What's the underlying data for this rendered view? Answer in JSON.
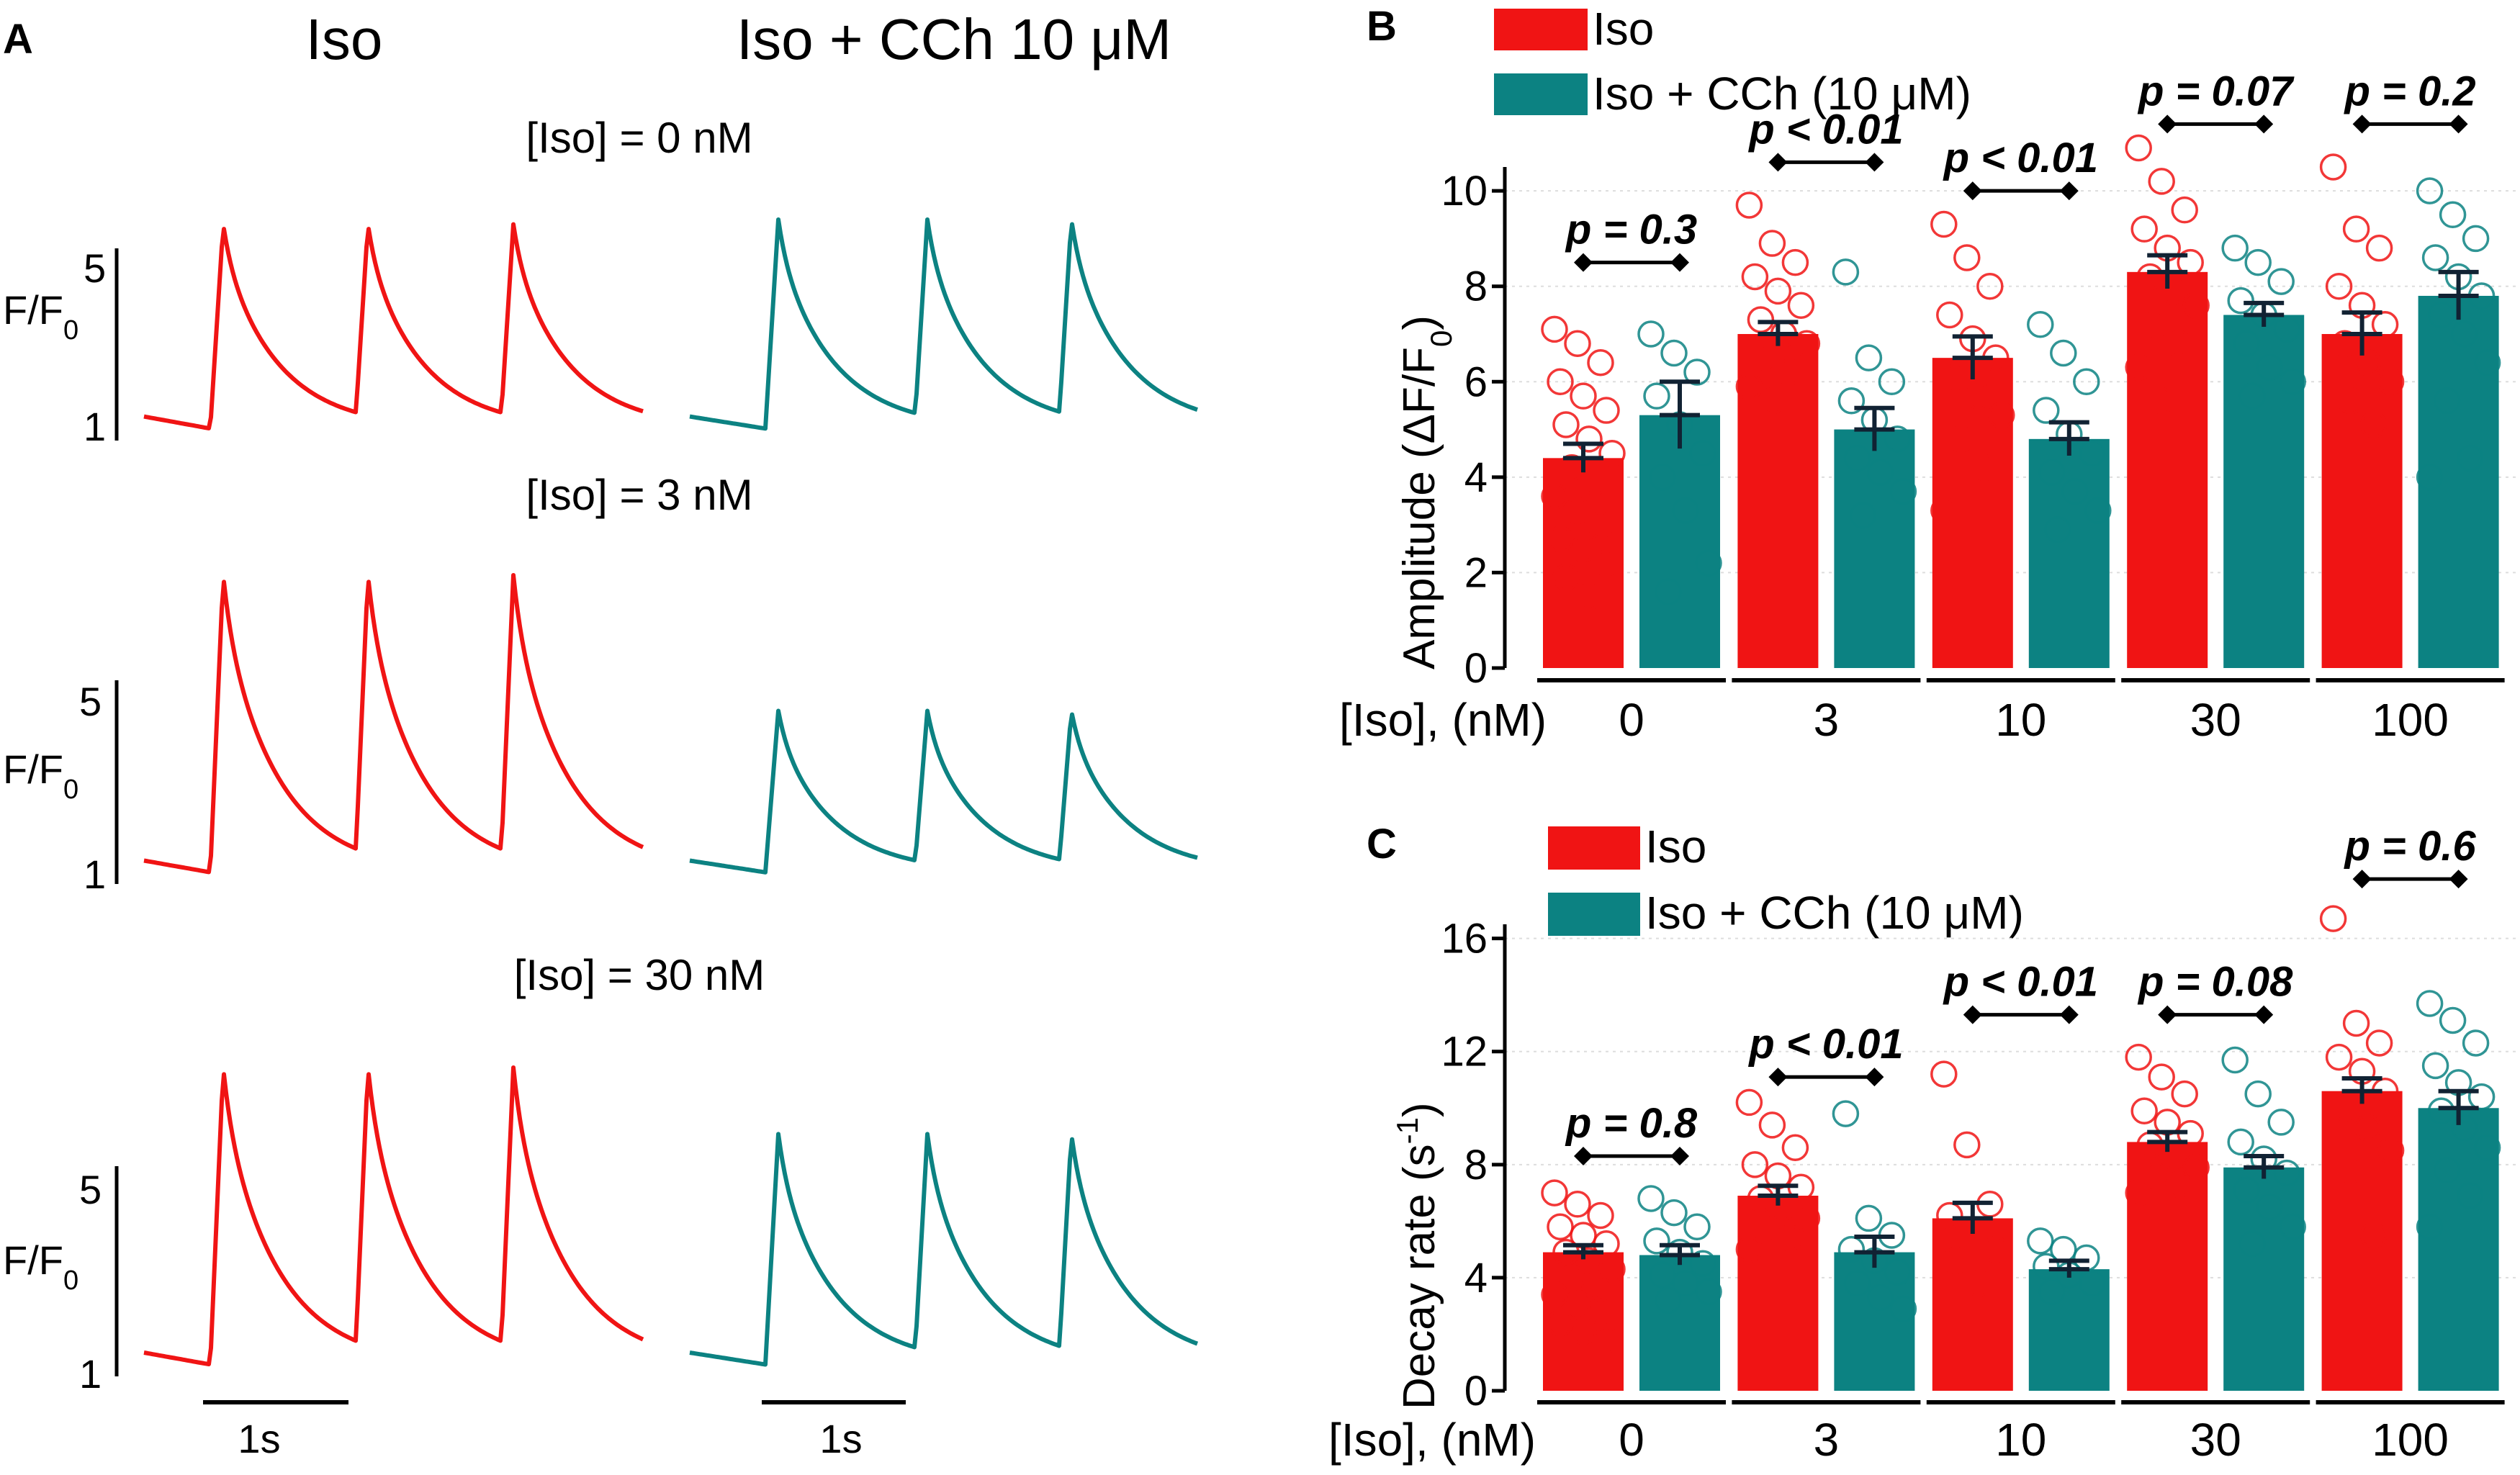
{
  "colors": {
    "iso": "#f01414",
    "cch": "#0c8282",
    "grid": "#dddddd"
  },
  "panel_a": {
    "letter": "A",
    "col_iso": "Iso",
    "col_cch": "Iso + CCh 10 μM",
    "scale_top": "5",
    "scale_bottom": "1",
    "scale_label": "F/F",
    "scale_sub": "0",
    "time_bar_label": "1s",
    "rows": [
      {
        "condition": "[Iso] = 0 nM",
        "iso_peak": 5.5,
        "cch_peak": 5.6
      },
      {
        "condition": "[Iso] = 3 nM",
        "iso_peak": 7.6,
        "cch_peak": 4.7
      },
      {
        "condition": "[Iso] = 30 nM",
        "iso_peak": 7.5,
        "cch_peak": 6.1
      }
    ]
  },
  "chart_data": [
    {
      "type": "bar",
      "letter": "B",
      "title": "",
      "ylabel": "Amplitude (ΔF/F",
      "ylabel_sub": "0",
      "ylabel_tail": ")",
      "xlabel": "[Iso], (nM)",
      "categories": [
        "0",
        "3",
        "10",
        "30",
        "100"
      ],
      "ylim": [
        0,
        10.5
      ],
      "yticks": [
        0,
        2,
        4,
        6,
        8,
        10
      ],
      "legend_position": "top-left",
      "series": [
        {
          "name": "Iso",
          "values": [
            4.4,
            7.0,
            6.5,
            8.3,
            7.0
          ],
          "sem": [
            0.3,
            0.25,
            0.45,
            0.35,
            0.45
          ],
          "points": [
            [
              7.1,
              6.8,
              6.4,
              6.0,
              5.7,
              5.4,
              5.1,
              4.8,
              4.5,
              4.2,
              3.9,
              3.6,
              3.3,
              3.0,
              2.7,
              2.5,
              2.2,
              1.9,
              1.5
            ],
            [
              9.7,
              8.9,
              8.5,
              8.2,
              7.9,
              7.6,
              7.3,
              7.0,
              6.8,
              6.5,
              6.2,
              5.9,
              5.6
            ],
            [
              9.3,
              8.6,
              8.0,
              7.4,
              6.9,
              6.5,
              6.1,
              5.7,
              5.3,
              4.8,
              4.2,
              3.3
            ],
            [
              10.9,
              10.2,
              9.6,
              9.2,
              8.8,
              8.5,
              8.2,
              7.9,
              7.6,
              7.2,
              6.8,
              6.3,
              5.6
            ],
            [
              10.5,
              9.2,
              8.8,
              8.0,
              7.6,
              7.2,
              6.8,
              6.4,
              6.0,
              5.6,
              5.1
            ]
          ]
        },
        {
          "name": "Iso + CCh (10 μM)",
          "values": [
            5.3,
            5.0,
            4.8,
            7.4,
            7.8
          ],
          "sem": [
            0.7,
            0.45,
            0.35,
            0.25,
            0.5
          ],
          "points": [
            [
              7.0,
              6.6,
              6.2,
              5.7,
              5.1,
              4.5,
              4.0,
              3.3,
              2.2,
              1.6
            ],
            [
              8.3,
              6.5,
              6.0,
              5.6,
              5.2,
              4.8,
              4.4,
              4.1,
              3.7,
              3.2
            ],
            [
              7.2,
              6.6,
              6.0,
              5.4,
              4.9,
              4.5,
              4.1,
              3.7,
              3.3,
              2.9
            ],
            [
              8.8,
              8.5,
              8.1,
              7.7,
              7.4,
              7.1,
              6.8,
              6.3,
              6.0,
              5.7
            ],
            [
              10.0,
              9.5,
              9.0,
              8.6,
              8.2,
              7.8,
              7.4,
              7.0,
              6.4,
              5.6,
              4.4,
              4.0
            ]
          ]
        }
      ],
      "comparisons": [
        {
          "label": "p = 0.3",
          "y": 8.5
        },
        {
          "label": "p < 0.01",
          "y": 10.6
        },
        {
          "label": "p < 0.01",
          "y": 10.0
        },
        {
          "label": "p = 0.07",
          "y": 11.4
        },
        {
          "label": "p = 0.2",
          "y": 11.4
        }
      ]
    },
    {
      "type": "bar",
      "letter": "C",
      "title": "",
      "ylabel": "Decay rate (s",
      "ylabel_sup": "-1",
      "ylabel_tail": ")",
      "xlabel": "[Iso], (nM)",
      "categories": [
        "0",
        "3",
        "10",
        "30",
        "100"
      ],
      "ylim": [
        0,
        16.5
      ],
      "yticks": [
        0,
        4,
        8,
        12,
        16
      ],
      "legend_position": "top-left",
      "series": [
        {
          "name": "Iso",
          "values": [
            4.9,
            6.9,
            6.1,
            8.8,
            10.6
          ],
          "sem": [
            0.25,
            0.35,
            0.55,
            0.35,
            0.45
          ],
          "points": [
            [
              7.0,
              6.6,
              6.2,
              5.8,
              5.5,
              5.2,
              4.9,
              4.6,
              4.3,
              4.0,
              3.7,
              3.4,
              3.1,
              2.8,
              2.4,
              2.1,
              1.8
            ],
            [
              10.2,
              9.4,
              8.6,
              8.0,
              7.6,
              7.2,
              6.8,
              6.5,
              6.1,
              5.8,
              5.4,
              5.0
            ],
            [
              11.2,
              8.7,
              6.6,
              6.2,
              5.6,
              5.0,
              4.6,
              3.8
            ],
            [
              11.8,
              11.1,
              10.5,
              9.9,
              9.5,
              9.1,
              8.7,
              8.3,
              7.9,
              7.6,
              7.3,
              7.0
            ],
            [
              16.7,
              13.0,
              12.3,
              11.8,
              11.3,
              10.6,
              10.0,
              9.3,
              8.5,
              7.8,
              5.5
            ]
          ]
        },
        {
          "name": "Iso + CCh (10 μM)",
          "values": [
            4.8,
            4.9,
            4.3,
            7.9,
            10.0
          ],
          "sem": [
            0.35,
            0.55,
            0.3,
            0.4,
            0.6
          ],
          "points": [
            [
              6.8,
              6.3,
              5.8,
              5.3,
              4.9,
              4.5,
              4.1,
              3.8,
              3.5,
              3.2
            ],
            [
              9.8,
              6.1,
              5.5,
              5.0,
              4.6,
              4.2,
              3.8,
              3.3,
              2.9
            ],
            [
              5.3,
              5.0,
              4.7,
              4.4,
              4.1,
              3.8,
              3.5
            ],
            [
              11.7,
              10.5,
              9.5,
              8.8,
              8.2,
              7.7,
              7.1,
              6.5,
              5.8,
              5.2
            ],
            [
              13.7,
              13.1,
              12.3,
              11.5,
              10.9,
              10.4,
              9.9,
              9.3,
              8.6,
              7.8,
              6.9,
              5.8
            ]
          ]
        }
      ],
      "comparisons": [
        {
          "label": "p = 0.8",
          "y": 8.3
        },
        {
          "label": "p < 0.01",
          "y": 11.1
        },
        {
          "label": "p < 0.01",
          "y": 13.3
        },
        {
          "label": "p = 0.08",
          "y": 13.3
        },
        {
          "label": "p = 0.6",
          "y": 18.1
        }
      ]
    }
  ]
}
